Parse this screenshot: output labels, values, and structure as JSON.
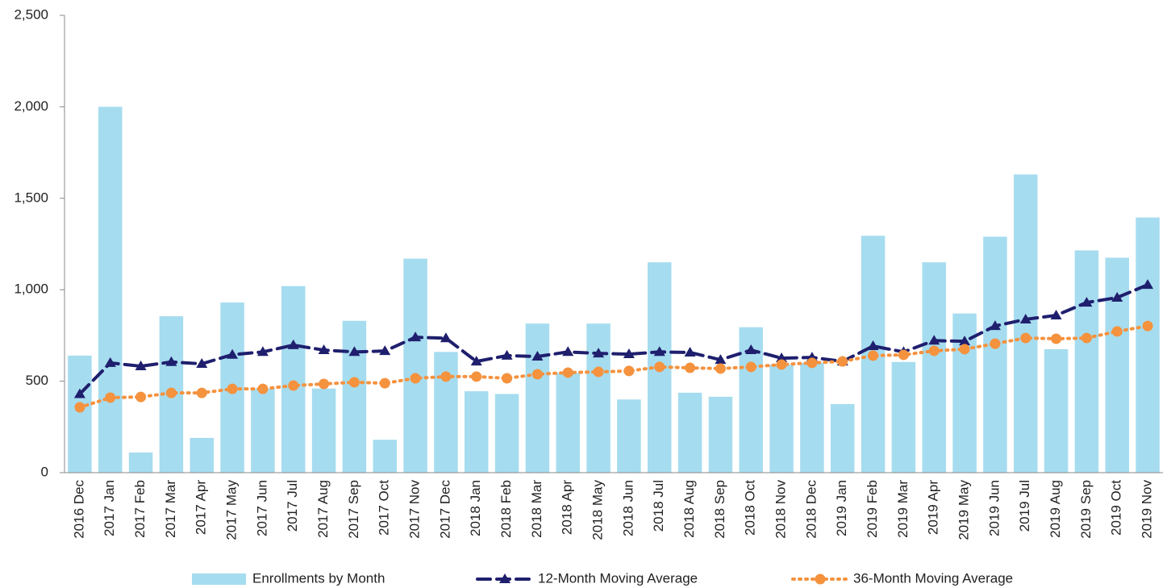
{
  "chart_data": {
    "type": "combo",
    "categories": [
      "2016 Dec",
      "2017 Jan",
      "2017 Feb",
      "2017 Mar",
      "2017 Apr",
      "2017 May",
      "2017 Jun",
      "2017 Jul",
      "2017 Aug",
      "2017 Sep",
      "2017 Oct",
      "2017 Nov",
      "2017 Dec",
      "2018 Jan",
      "2018 Feb",
      "2018 Mar",
      "2018 Apr",
      "2018 May",
      "2018 Jun",
      "2018 Jul",
      "2018 Aug",
      "2018 Sep",
      "2018 Oct",
      "2018 Nov",
      "2018 Dec",
      "2019 Jan",
      "2019 Feb",
      "2019 Mar",
      "2019 Apr",
      "2019 May",
      "2019 Jun",
      "2019 Jul",
      "2019 Aug",
      "2019 Sep",
      "2019 Oct",
      "2019 Nov"
    ],
    "series": [
      {
        "name": "Enrollments by Month",
        "type": "bar",
        "color": "#a6dcef",
        "values": [
          640,
          2000,
          110,
          855,
          190,
          930,
          460,
          1020,
          460,
          830,
          180,
          1170,
          660,
          445,
          430,
          815,
          545,
          815,
          400,
          1150,
          437,
          415,
          795,
          590,
          600,
          375,
          1295,
          605,
          1150,
          870,
          1290,
          1630,
          675,
          1215,
          1175,
          1395
        ]
      },
      {
        "name": "12-Month Moving Average",
        "type": "line",
        "color": "#1f1f6e",
        "dash": "16 8",
        "marker": "triangle",
        "values": [
          430,
          600,
          582,
          605,
          595,
          645,
          660,
          697,
          670,
          660,
          665,
          740,
          735,
          608,
          640,
          635,
          660,
          652,
          648,
          660,
          657,
          617,
          670,
          626,
          630,
          608,
          692,
          660,
          722,
          718,
          802,
          838,
          860,
          930,
          957,
          1027
        ]
      },
      {
        "name": "36-Month Moving Average",
        "type": "line",
        "color": "#f5923e",
        "dash": "2 6",
        "marker": "circle",
        "values": [
          357,
          410,
          414,
          436,
          436,
          458,
          458,
          476,
          485,
          494,
          489,
          516,
          525,
          525,
          516,
          538,
          547,
          551,
          556,
          578,
          573,
          569,
          578,
          591,
          600,
          608,
          640,
          644,
          666,
          675,
          705,
          736,
          732,
          736,
          772,
          802
        ]
      }
    ],
    "ylim": [
      0,
      2500
    ],
    "yticks": [
      0,
      500,
      {
        "value": 1000,
        "label": "1,000"
      },
      {
        "value": 1500,
        "label": "1,500"
      },
      {
        "value": 2000,
        "label": "2,000"
      },
      {
        "value": 2500,
        "label": "2,500"
      }
    ],
    "grid": false
  }
}
